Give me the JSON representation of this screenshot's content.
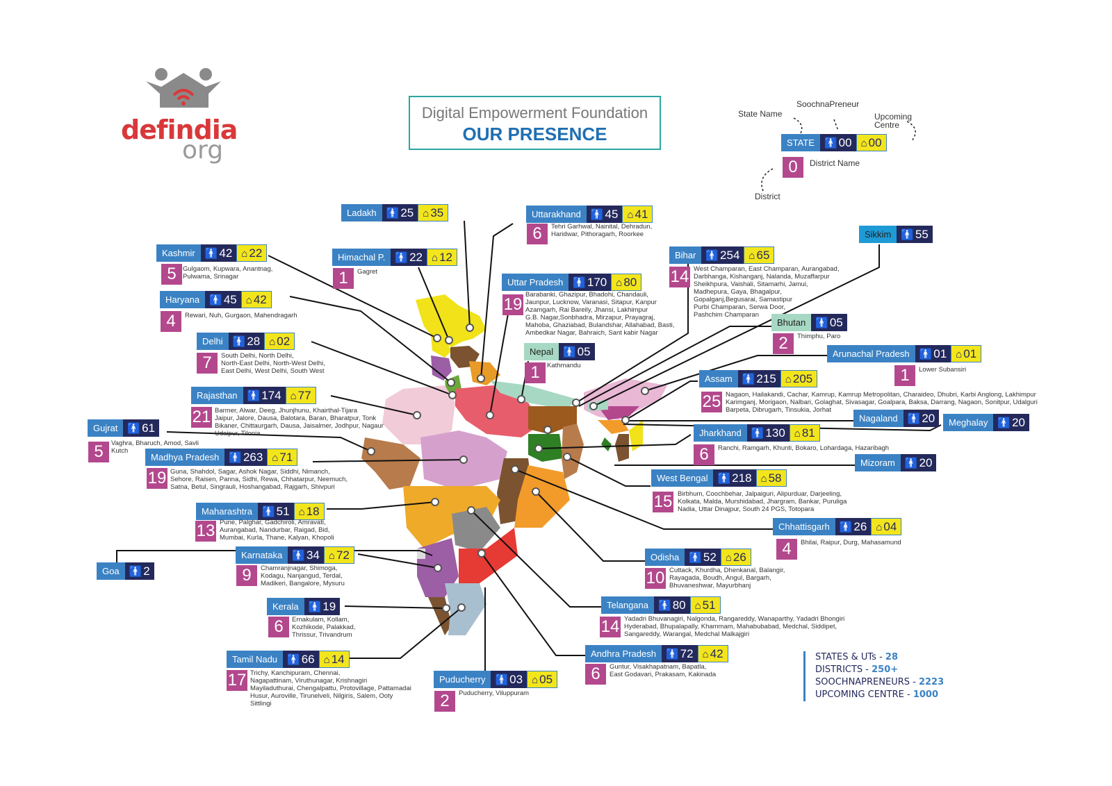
{
  "header": {
    "org_name": "defindia",
    "org_suffix": "org",
    "title_sub": "Digital Empowerment Foundation",
    "title_main": "OUR PRESENCE"
  },
  "legend": {
    "state_name_label": "State Name",
    "soochnapreneur_label": "SoochnaPreneur",
    "upcoming_label": "Upcoming Centre",
    "state": "STATE",
    "sp": "00",
    "uc": "00",
    "district_count": "0",
    "district_name_label": "District Name",
    "district_label": "District"
  },
  "colors": {
    "state_blue": "#3b82c4",
    "sp_navy": "#24295c",
    "uc_yellow": "#f3e51c",
    "district_magenta": "#b3488d",
    "title_teal": "#2aa6a1"
  },
  "states": [
    {
      "name": "Ladakh",
      "sp": "25",
      "uc": "35"
    },
    {
      "name": "Uttarakhand",
      "sp": "45",
      "uc": "41",
      "districts": "6",
      "list": [
        "Tehri Garhwal, Nainital, Dehradun,",
        "Haridwar, Pithoragarh, Roorkee"
      ]
    },
    {
      "name": "Kashmir",
      "sp": "42",
      "uc": "22",
      "districts": "5",
      "list": [
        "Gulgaom, Kupwara, Anantnag,",
        "Pulwama, Srinagar"
      ]
    },
    {
      "name": "Himachal P.",
      "sp": "22",
      "uc": "12",
      "districts": "1",
      "list": [
        "Gagret"
      ]
    },
    {
      "name": "Uttar Pradesh",
      "sp": "170",
      "uc": "80",
      "districts": "19",
      "list": [
        "Barabanki, Ghazipur, Bhadohi, Chandauli,",
        "Jaunpur, Lucknow, Varanasi, Sitapur, Kanpur",
        "Azamgarh, Rai Bareily, Jhansi, Lakhimpur",
        "G.B. Nagar,Sonbhadra, Mirzapur, Prayagraj,",
        "Mahoba, Ghaziabad, Bulandshar, Allahabad, Basti,",
        "Ambedkar Nagar, Bahraich, Sant kabir Nagar"
      ]
    },
    {
      "name": "Bihar",
      "sp": "254",
      "uc": "65",
      "districts": "14",
      "list": [
        "West Champaran, East Champaran, Aurangabad,",
        "Darbhanga, Kishanganj, Nalanda, Muzaffarpur",
        "Sheikhpura, Vaishali, Sitamarhi, Jamui,",
        "Madhepura, Gaya, Bhagalpur,",
        "Gopalganj,Begusarai, Samastipur",
        "Purbi Champaran, Serwa Door,",
        "Pashchim Champaran"
      ]
    },
    {
      "name": "Sikkim",
      "sp": "55"
    },
    {
      "name": "Haryana",
      "sp": "45",
      "uc": "42",
      "districts": "4",
      "list": [
        "Rewari, Nuh, Gurgaon, Mahendragarh"
      ]
    },
    {
      "name": "Delhi",
      "sp": "28",
      "uc": "02",
      "districts": "7",
      "list": [
        "South Delhi, North Delhi,",
        "North-East Delhi, North-West Delhi,",
        "East Delhi, West Delhi, South West"
      ]
    },
    {
      "name": "Nepal",
      "sp": "05",
      "districts": "1",
      "list": [
        "Kathmandu"
      ]
    },
    {
      "name": "Bhutan",
      "sp": "05",
      "districts": "2",
      "list": [
        "Thimphu, Paro"
      ]
    },
    {
      "name": "Arunachal Pradesh",
      "sp": "01",
      "uc": "01",
      "districts": "1",
      "list": [
        "Lower Subansiri"
      ]
    },
    {
      "name": "Assam",
      "sp": "215",
      "uc": "205",
      "districts": "25",
      "list": [
        "Nagaon, Hailakandi, Cachar, Kamrup, Kamrup Metropolitan, Charaideo, Dhubri, Karbi Anglong, Lakhimpur",
        "Karimganj, Morigaon, Nalbari, Golaghat, Sivasagar, Goalpara, Baksa, Darrang, Nagaon, Sonitpur, Udalguri",
        "Barpeta, Dibrugarh, Tinsukia, Jorhat"
      ]
    },
    {
      "name": "Rajasthan",
      "sp": "174",
      "uc": "77",
      "districts": "21",
      "list": [
        "Barmer, Alwar, Deeg, Jhunjhunu, Khairthal-Tijara",
        "Jaipur, Jalore, Dausa, Balotara, Baran, Bharatpur, Tonk",
        "Bikaner, Chittaurgarh, Dausa, Jaisalmer, Jodhpur, Nagaur",
        "Udaipur, Tilonia"
      ]
    },
    {
      "name": "Nagaland",
      "sp": "20"
    },
    {
      "name": "Meghalay",
      "sp": "20"
    },
    {
      "name": "Gujrat",
      "sp": "61",
      "districts": "5",
      "list": [
        "Vaghra, Bharuch, Amod, Savli",
        "Kutch"
      ]
    },
    {
      "name": "Jharkhand",
      "sp": "130",
      "uc": "81",
      "districts": "6",
      "list": [
        "Ranchi, Ramgarh, Khunti, Bokaro, Lohardaga, Hazaribagh"
      ]
    },
    {
      "name": "Madhya Pradesh",
      "sp": "263",
      "uc": "71",
      "districts": "19",
      "list": [
        "Guna, Shahdol, Sagar, Ashok Nagar, Siddhi, Nimanch,",
        "Sehore, Raisen, Panna, Sidhi, Rewa, Chhatarpur, Neemuch,",
        "Satna, Betul, Singrauli, Hoshangabad, Rajgarh, Shivpuri"
      ]
    },
    {
      "name": "Mizoram",
      "sp": "20"
    },
    {
      "name": "West Bengal",
      "sp": "218",
      "uc": "58",
      "districts": "15",
      "list": [
        "Birbhum, Coochbehar, Jalpaiguri, Alipurduar, Darjeeling,",
        "Kolkata, Malda, Murshidabad, Jhargram, Bankar, Puruliga",
        "Nadia, Uttar Dinajpur, South 24 PGS, Totopara"
      ]
    },
    {
      "name": "Maharashtra",
      "sp": "51",
      "uc": "18",
      "districts": "13",
      "list": [
        "Pune, Palghar, Gadchiroli, Amravati,",
        "Aurangabad, Nandurbar, Raigad, Bid,",
        "Mumbai, Kurla, Thane, Kalyan, Khopoli"
      ]
    },
    {
      "name": "Chhattisgarh",
      "sp": "26",
      "uc": "04",
      "districts": "4",
      "list": [
        "Bhilai, Raipur, Durg, Mahasamund"
      ]
    },
    {
      "name": "Karnataka",
      "sp": "34",
      "uc": "72",
      "districts": "9",
      "list": [
        "Chamranjnagar, Shimoga,",
        "Kodagu, Nanjangud, Terdal,",
        "Madikeri, Bangalore, Mysuru"
      ]
    },
    {
      "name": "Goa",
      "sp": "2"
    },
    {
      "name": "Odisha",
      "sp": "52",
      "uc": "26",
      "districts": "10",
      "list": [
        "Cuttack, Khurdha, Dhenkanal, Balangir,",
        "Rayagada, Boudh, Angul, Bargarh,",
        "Bhuvaneshwar, Mayurbhanj"
      ]
    },
    {
      "name": "Kerala",
      "sp": "19",
      "districts": "6",
      "list": [
        "Ernakulam, Kollam,",
        "Kozhikode, Palakkad,",
        "Thrissur, Trivandrum"
      ]
    },
    {
      "name": "Telangana",
      "sp": "80",
      "uc": "51",
      "districts": "14",
      "list": [
        "Yadadri Bhuvanagiri, Nalgonda, Rangareddy, Wanaparthy, Yadadri Bhongiri",
        "Hyderabad, Bhupalapally, Khammam, Mahabubabad, Medchal, Siddipet,",
        "Sangareddy, Warangal, Medchal Malkajgiri"
      ]
    },
    {
      "name": "Tamil Nadu",
      "sp": "66",
      "uc": "14",
      "districts": "17",
      "list": [
        "Trichy, Kanchipuram, Chennai,",
        "Nagapattinam, Viruthunagar, Krishnagiri",
        "Mayiladuthurai, Chengalpattu, Protovillage, Pattamadai",
        "Husur, Auroville, Tirunelveli, Nilgiris, Salem, Ooty",
        "Sittlingi"
      ]
    },
    {
      "name": "Andhra Pradesh",
      "sp": "72",
      "uc": "42",
      "districts": "6",
      "list": [
        "Guntur, Visakhapatnam, Bapatla,",
        "East Godavari, Prakasam, Kakinada"
      ]
    },
    {
      "name": "Puducherry",
      "sp": "03",
      "uc": "05",
      "districts": "2",
      "list": [
        "Puducherry, Viluppuram"
      ]
    }
  ],
  "stats": {
    "states_label": "STATES & UTs - ",
    "states_value": "28",
    "districts_label": "DISTRICTS - ",
    "districts_value": "250+",
    "sp_label": "SOOCHNAPRENEURS - ",
    "sp_value": "2223",
    "uc_label": "UPCOMING CENTRE - ",
    "uc_value": "1000"
  }
}
